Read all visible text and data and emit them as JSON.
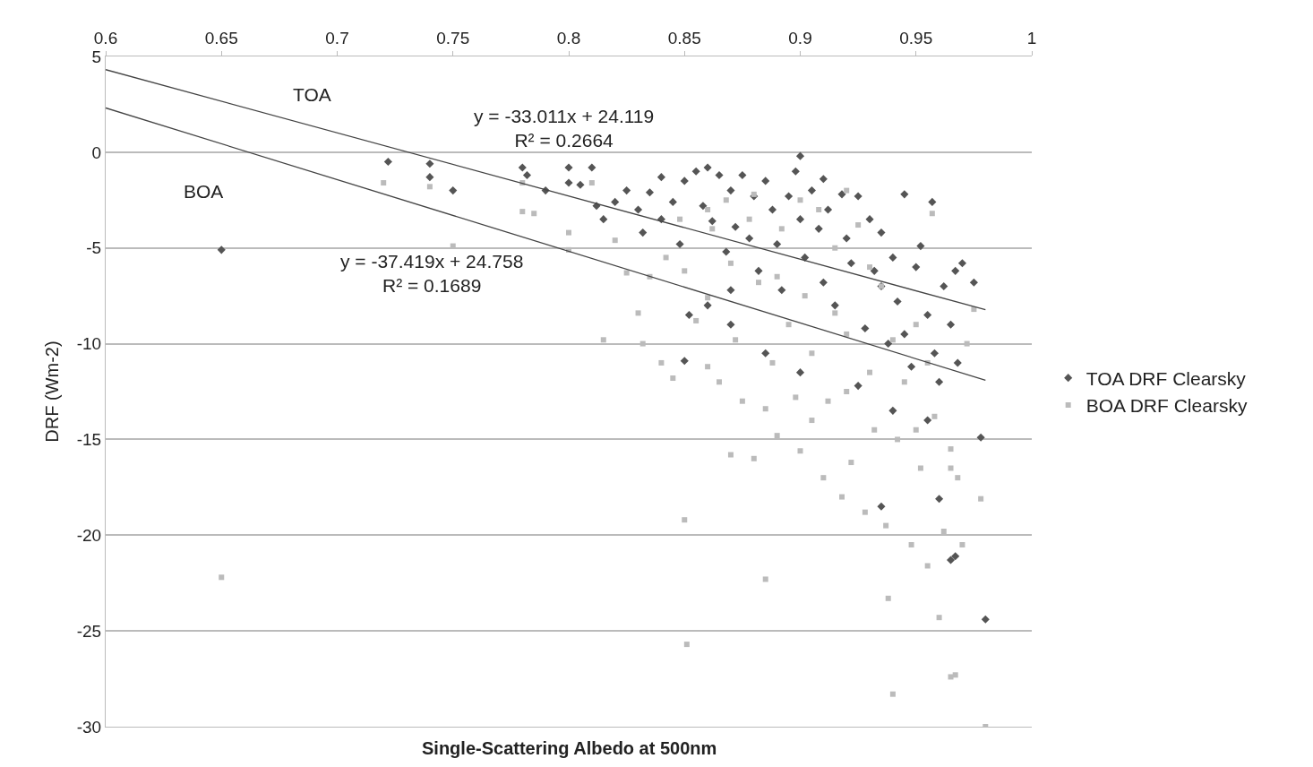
{
  "chart_data": {
    "type": "scatter",
    "xlabel": "Single-Scattering Albedo at 500nm",
    "ylabel": "DRF (Wm-2)",
    "xlim": [
      0.6,
      1
    ],
    "xticks": [
      0.6,
      0.65,
      0.7,
      0.75,
      0.8,
      0.85,
      0.9,
      0.95,
      1
    ],
    "ylim": [
      -30,
      5
    ],
    "yticks": [
      -30,
      -25,
      -20,
      -15,
      -10,
      -5,
      0,
      5
    ],
    "grid": "y",
    "legend": "right",
    "annotations": [
      "TOA",
      "BOA",
      "y = -33.011x + 24.119\nR² = 0.2664",
      "y = -37.419x + 24.758\nR² = 0.1689"
    ],
    "series": [
      {
        "name": "TOA DRF Clearsky",
        "color": "#555555",
        "marker": "diamond",
        "x": [
          0.65,
          0.722,
          0.74,
          0.74,
          0.75,
          0.78,
          0.782,
          0.79,
          0.8,
          0.8,
          0.805,
          0.81,
          0.812,
          0.815,
          0.82,
          0.825,
          0.83,
          0.832,
          0.835,
          0.84,
          0.84,
          0.845,
          0.848,
          0.85,
          0.852,
          0.855,
          0.858,
          0.86,
          0.862,
          0.865,
          0.868,
          0.87,
          0.872,
          0.875,
          0.878,
          0.88,
          0.882,
          0.885,
          0.888,
          0.89,
          0.892,
          0.895,
          0.898,
          0.9,
          0.9,
          0.902,
          0.905,
          0.908,
          0.91,
          0.91,
          0.912,
          0.915,
          0.918,
          0.92,
          0.922,
          0.925,
          0.928,
          0.93,
          0.932,
          0.935,
          0.935,
          0.938,
          0.94,
          0.942,
          0.945,
          0.945,
          0.948,
          0.95,
          0.952,
          0.955,
          0.957,
          0.958,
          0.96,
          0.962,
          0.965,
          0.967,
          0.968,
          0.97,
          0.975,
          0.885,
          0.87,
          0.86,
          0.85,
          0.935,
          0.965,
          0.967,
          0.98,
          0.978,
          0.94,
          0.955,
          0.9,
          0.87,
          0.925,
          0.96
        ],
        "values": [
          -5.1,
          -0.5,
          -0.6,
          -1.3,
          -2.0,
          -0.8,
          -1.2,
          -2.0,
          -0.8,
          -1.6,
          -1.7,
          -0.8,
          -2.8,
          -3.5,
          -2.6,
          -2.0,
          -3.0,
          -4.2,
          -2.1,
          -1.3,
          -3.5,
          -2.6,
          -4.8,
          -1.5,
          -8.5,
          -1.0,
          -2.8,
          -0.8,
          -3.6,
          -1.2,
          -5.2,
          -2.0,
          -3.9,
          -1.2,
          -4.5,
          -2.3,
          -6.2,
          -1.5,
          -3.0,
          -4.8,
          -7.2,
          -2.3,
          -1.0,
          -0.2,
          -3.5,
          -5.5,
          -2.0,
          -4.0,
          -1.4,
          -6.8,
          -3.0,
          -8.0,
          -2.2,
          -4.5,
          -5.8,
          -2.3,
          -9.2,
          -3.5,
          -6.2,
          -7.0,
          -4.2,
          -10.0,
          -5.5,
          -7.8,
          -2.2,
          -9.5,
          -11.2,
          -6.0,
          -4.9,
          -8.5,
          -2.6,
          -10.5,
          -12.0,
          -7.0,
          -9.0,
          -6.2,
          -11.0,
          -5.8,
          -6.8,
          -10.5,
          -9.0,
          -8.0,
          -10.9,
          -18.5,
          -21.3,
          -21.1,
          -24.4,
          -14.9,
          -13.5,
          -14.0,
          -11.5,
          -7.2,
          -12.2,
          -18.1
        ]
      },
      {
        "name": "BOA DRF Clearsky",
        "color": "#bbbbbb",
        "marker": "square",
        "x": [
          0.65,
          0.72,
          0.74,
          0.75,
          0.78,
          0.78,
          0.785,
          0.8,
          0.8,
          0.81,
          0.815,
          0.82,
          0.825,
          0.83,
          0.832,
          0.835,
          0.84,
          0.842,
          0.845,
          0.848,
          0.85,
          0.85,
          0.851,
          0.855,
          0.86,
          0.862,
          0.865,
          0.868,
          0.87,
          0.872,
          0.875,
          0.878,
          0.88,
          0.882,
          0.885,
          0.885,
          0.888,
          0.89,
          0.892,
          0.895,
          0.898,
          0.9,
          0.9,
          0.902,
          0.905,
          0.908,
          0.91,
          0.912,
          0.915,
          0.918,
          0.92,
          0.922,
          0.925,
          0.928,
          0.93,
          0.932,
          0.935,
          0.937,
          0.938,
          0.94,
          0.942,
          0.945,
          0.948,
          0.95,
          0.952,
          0.955,
          0.957,
          0.958,
          0.96,
          0.962,
          0.965,
          0.965,
          0.967,
          0.968,
          0.97,
          0.972,
          0.975,
          0.978,
          0.98,
          0.955,
          0.93,
          0.915,
          0.89,
          0.87,
          0.86,
          0.94,
          0.92,
          0.905,
          0.95,
          0.965,
          0.92,
          0.88,
          0.86
        ],
        "values": [
          -22.2,
          -1.6,
          -1.8,
          -4.9,
          -1.6,
          -3.1,
          -3.2,
          -4.2,
          -5.1,
          -1.6,
          -9.8,
          -4.6,
          -6.3,
          -8.4,
          -10.0,
          -6.5,
          -11.0,
          -5.5,
          -11.8,
          -3.5,
          -6.2,
          -19.2,
          -25.7,
          -8.8,
          -7.6,
          -4.0,
          -12.0,
          -2.5,
          -15.8,
          -9.8,
          -13.0,
          -3.5,
          -16.0,
          -6.8,
          -13.4,
          -22.3,
          -11.0,
          -14.8,
          -4.0,
          -9.0,
          -12.8,
          -2.5,
          -15.6,
          -7.5,
          -10.5,
          -3.0,
          -17.0,
          -13.0,
          -5.0,
          -18.0,
          -9.5,
          -16.2,
          -3.8,
          -18.8,
          -11.5,
          -14.5,
          -7.0,
          -19.5,
          -23.3,
          -28.3,
          -15.0,
          -12.0,
          -20.5,
          -9.0,
          -16.5,
          -21.6,
          -3.2,
          -13.8,
          -24.3,
          -19.8,
          -15.5,
          -27.4,
          -27.3,
          -17.0,
          -20.5,
          -10.0,
          -8.2,
          -18.1,
          -30.0,
          -11.0,
          -6.0,
          -8.4,
          -6.5,
          -5.8,
          -11.2,
          -9.8,
          -12.5,
          -14.0,
          -14.5,
          -16.5,
          -2.0,
          -2.2,
          -3.0
        ]
      },
      {
        "type": "line",
        "color": "#444444",
        "marker": "none",
        "x": [
          0.6,
          0.98
        ],
        "values": [
          4.31,
          -8.23
        ]
      },
      {
        "type": "line",
        "color": "#444444",
        "marker": "none",
        "x": [
          0.6,
          0.98
        ],
        "values": [
          2.31,
          -11.91
        ]
      }
    ]
  }
}
